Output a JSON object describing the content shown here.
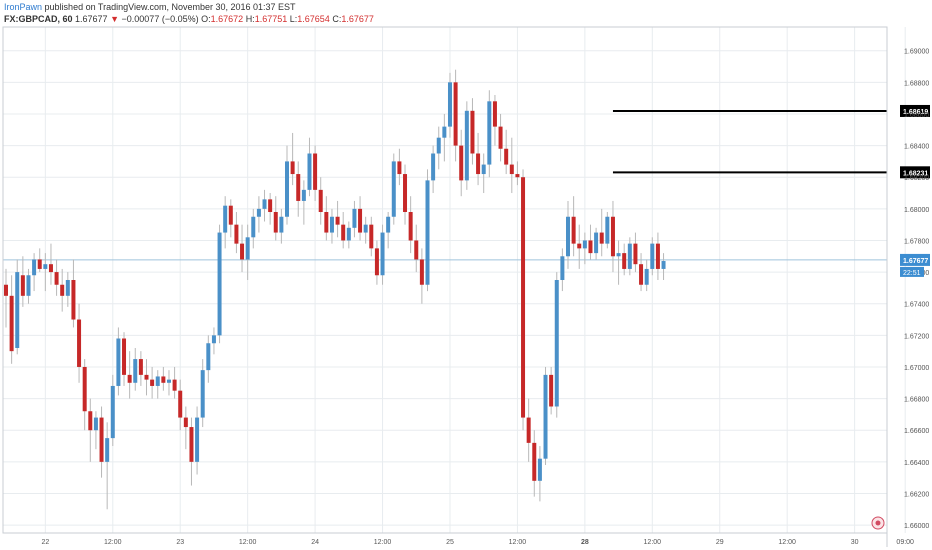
{
  "header": {
    "author": "IronPawn",
    "published_text": "published on TradingView.com, November 30, 2016 01:37 EST",
    "symbol": "FX:GBPCAD, 60",
    "last": "1.67677",
    "change": "−0.00077 (−0.05%)",
    "o_label": "O:",
    "o_value": "1.67672",
    "h_label": "H:",
    "h_value": "1.67751",
    "l_label": "L:",
    "l_value": "1.67654",
    "c_label": "C:",
    "c_value": "1.67677"
  },
  "colors": {
    "up": "#4a90c8",
    "down": "#c62828",
    "wick": "#b8b8b8",
    "grid": "#e8ecef",
    "price_line": "#9fc3dc",
    "level_line": "#000000"
  },
  "chart_data": {
    "type": "candlestick",
    "symbol": "FX:GBPCAD",
    "interval": "60",
    "y_ticks": [
      "1.69000",
      "1.68800",
      "1.68600",
      "1.68400",
      "1.68200",
      "1.68000",
      "1.67800",
      "1.67600",
      "1.67400",
      "1.67200",
      "1.67000",
      "1.66800",
      "1.66600",
      "1.66400",
      "1.66200",
      "1.66000"
    ],
    "ylim": [
      1.6595,
      1.6915
    ],
    "x_ticks": [
      "22",
      "12:00",
      "23",
      "12:00",
      "24",
      "12:00",
      "25",
      "12:00",
      "28",
      "12:00",
      "29",
      "12:00",
      "30",
      "09:00"
    ],
    "x_tick_index": [
      7,
      19,
      31,
      43,
      55,
      67,
      79,
      91,
      103,
      115,
      127,
      139,
      151,
      160
    ],
    "bold_ticks": [
      "28"
    ],
    "current_price": "1.67677",
    "countdown": "22:51",
    "levels": [
      {
        "label": "1.68619",
        "value": 1.68619,
        "from_index": 108
      },
      {
        "label": "1.68231",
        "value": 1.68231,
        "from_index": 108
      }
    ],
    "candles": [
      [
        1.6752,
        1.6762,
        1.6725,
        1.6745
      ],
      [
        1.6745,
        1.6758,
        1.6702,
        1.671
      ],
      [
        1.6712,
        1.6768,
        1.6708,
        1.676
      ],
      [
        1.6758,
        1.677,
        1.6738,
        1.6745
      ],
      [
        1.6745,
        1.6762,
        1.674,
        1.6758
      ],
      [
        1.6758,
        1.6772,
        1.6748,
        1.6768
      ],
      [
        1.6768,
        1.6775,
        1.676,
        1.6762
      ],
      [
        1.6762,
        1.6772,
        1.6748,
        1.6765
      ],
      [
        1.6765,
        1.6778,
        1.6752,
        1.676
      ],
      [
        1.676,
        1.6768,
        1.6745,
        1.6752
      ],
      [
        1.6752,
        1.6762,
        1.6735,
        1.6745
      ],
      [
        1.6745,
        1.676,
        1.6738,
        1.6755
      ],
      [
        1.6755,
        1.6768,
        1.6725,
        1.673
      ],
      [
        1.673,
        1.674,
        1.669,
        1.67
      ],
      [
        1.67,
        1.6705,
        1.666,
        1.6672
      ],
      [
        1.6672,
        1.668,
        1.664,
        1.666
      ],
      [
        1.666,
        1.6672,
        1.6648,
        1.6668
      ],
      [
        1.6668,
        1.6675,
        1.663,
        1.664
      ],
      [
        1.664,
        1.6665,
        1.661,
        1.6655
      ],
      [
        1.6655,
        1.6695,
        1.665,
        1.6688
      ],
      [
        1.6688,
        1.6725,
        1.6682,
        1.6718
      ],
      [
        1.6718,
        1.6722,
        1.6688,
        1.6695
      ],
      [
        1.6695,
        1.671,
        1.668,
        1.669
      ],
      [
        1.669,
        1.6712,
        1.6685,
        1.6705
      ],
      [
        1.6705,
        1.671,
        1.6688,
        1.6695
      ],
      [
        1.6695,
        1.6705,
        1.6682,
        1.6692
      ],
      [
        1.6692,
        1.67,
        1.668,
        1.6688
      ],
      [
        1.6688,
        1.6698,
        1.668,
        1.6694
      ],
      [
        1.6694,
        1.67,
        1.6685,
        1.669
      ],
      [
        1.669,
        1.6698,
        1.6682,
        1.6692
      ],
      [
        1.6692,
        1.67,
        1.668,
        1.6685
      ],
      [
        1.6685,
        1.6692,
        1.666,
        1.6668
      ],
      [
        1.6668,
        1.6675,
        1.6648,
        1.6662
      ],
      [
        1.6662,
        1.6668,
        1.6625,
        1.664
      ],
      [
        1.664,
        1.6675,
        1.6632,
        1.6668
      ],
      [
        1.6668,
        1.6705,
        1.6662,
        1.6698
      ],
      [
        1.6698,
        1.672,
        1.669,
        1.6715
      ],
      [
        1.6715,
        1.6725,
        1.6708,
        1.672
      ],
      [
        1.672,
        1.679,
        1.6715,
        1.6785
      ],
      [
        1.6785,
        1.6808,
        1.6775,
        1.6802
      ],
      [
        1.6802,
        1.6806,
        1.6782,
        1.679
      ],
      [
        1.679,
        1.6798,
        1.6772,
        1.6778
      ],
      [
        1.6778,
        1.679,
        1.676,
        1.6768
      ],
      [
        1.6768,
        1.679,
        1.6755,
        1.6782
      ],
      [
        1.6782,
        1.68,
        1.6775,
        1.6795
      ],
      [
        1.6795,
        1.6808,
        1.6785,
        1.68
      ],
      [
        1.68,
        1.6812,
        1.6792,
        1.6806
      ],
      [
        1.6806,
        1.681,
        1.679,
        1.6798
      ],
      [
        1.6798,
        1.6808,
        1.678,
        1.6785
      ],
      [
        1.6785,
        1.68,
        1.6778,
        1.6795
      ],
      [
        1.6795,
        1.684,
        1.679,
        1.683
      ],
      [
        1.683,
        1.6848,
        1.6815,
        1.6822
      ],
      [
        1.6822,
        1.683,
        1.6795,
        1.6805
      ],
      [
        1.6805,
        1.6818,
        1.679,
        1.6812
      ],
      [
        1.6812,
        1.6845,
        1.6808,
        1.6835
      ],
      [
        1.6835,
        1.684,
        1.6805,
        1.6812
      ],
      [
        1.6812,
        1.682,
        1.679,
        1.6798
      ],
      [
        1.6798,
        1.6808,
        1.678,
        1.6785
      ],
      [
        1.6785,
        1.68,
        1.6778,
        1.6795
      ],
      [
        1.6795,
        1.6805,
        1.6782,
        1.679
      ],
      [
        1.679,
        1.6798,
        1.6775,
        1.678
      ],
      [
        1.678,
        1.6792,
        1.6775,
        1.6788
      ],
      [
        1.6788,
        1.6805,
        1.6782,
        1.68
      ],
      [
        1.68,
        1.6808,
        1.678,
        1.6785
      ],
      [
        1.6785,
        1.6795,
        1.6778,
        1.679
      ],
      [
        1.679,
        1.6795,
        1.677,
        1.6775
      ],
      [
        1.6775,
        1.678,
        1.6752,
        1.6758
      ],
      [
        1.6758,
        1.679,
        1.6752,
        1.6785
      ],
      [
        1.6785,
        1.6798,
        1.6775,
        1.6795
      ],
      [
        1.6795,
        1.6835,
        1.679,
        1.683
      ],
      [
        1.683,
        1.6838,
        1.6815,
        1.6822
      ],
      [
        1.6822,
        1.6828,
        1.679,
        1.6798
      ],
      [
        1.6798,
        1.6808,
        1.6772,
        1.678
      ],
      [
        1.678,
        1.679,
        1.676,
        1.6768
      ],
      [
        1.6768,
        1.6775,
        1.674,
        1.6752
      ],
      [
        1.6752,
        1.6825,
        1.6748,
        1.6818
      ],
      [
        1.6818,
        1.684,
        1.681,
        1.6835
      ],
      [
        1.6835,
        1.6852,
        1.6825,
        1.6845
      ],
      [
        1.6845,
        1.686,
        1.683,
        1.6852
      ],
      [
        1.6852,
        1.6886,
        1.6845,
        1.688
      ],
      [
        1.688,
        1.6888,
        1.683,
        1.684
      ],
      [
        1.684,
        1.685,
        1.6808,
        1.6818
      ],
      [
        1.6818,
        1.6868,
        1.6812,
        1.6862
      ],
      [
        1.6862,
        1.687,
        1.6828,
        1.6835
      ],
      [
        1.6835,
        1.6848,
        1.6815,
        1.6822
      ],
      [
        1.6822,
        1.6835,
        1.681,
        1.6828
      ],
      [
        1.6828,
        1.6875,
        1.682,
        1.6868
      ],
      [
        1.6868,
        1.6872,
        1.684,
        1.6852
      ],
      [
        1.6852,
        1.686,
        1.683,
        1.6838
      ],
      [
        1.6838,
        1.685,
        1.6822,
        1.6828
      ],
      [
        1.6828,
        1.6845,
        1.681,
        1.6822
      ],
      [
        1.6822,
        1.683,
        1.6815,
        1.682
      ],
      [
        1.682,
        1.6825,
        1.666,
        1.6668
      ],
      [
        1.6668,
        1.668,
        1.664,
        1.6652
      ],
      [
        1.6652,
        1.666,
        1.6618,
        1.6628
      ],
      [
        1.6628,
        1.665,
        1.6615,
        1.6642
      ],
      [
        1.6642,
        1.67,
        1.6638,
        1.6695
      ],
      [
        1.6695,
        1.67,
        1.667,
        1.6675
      ],
      [
        1.6675,
        1.676,
        1.6668,
        1.6755
      ],
      [
        1.6755,
        1.6775,
        1.6748,
        1.677
      ],
      [
        1.677,
        1.6805,
        1.6762,
        1.6795
      ],
      [
        1.6795,
        1.6808,
        1.677,
        1.6778
      ],
      [
        1.6778,
        1.679,
        1.6762,
        1.6775
      ],
      [
        1.6775,
        1.6785,
        1.6765,
        1.678
      ],
      [
        1.678,
        1.679,
        1.6768,
        1.6772
      ],
      [
        1.6772,
        1.6788,
        1.6768,
        1.6785
      ],
      [
        1.6785,
        1.68,
        1.677,
        1.6778
      ],
      [
        1.6778,
        1.6798,
        1.6775,
        1.6795
      ],
      [
        1.6795,
        1.6805,
        1.676,
        1.677
      ],
      [
        1.677,
        1.678,
        1.6752,
        1.6772
      ],
      [
        1.6772,
        1.6778,
        1.6758,
        1.6762
      ],
      [
        1.6762,
        1.6782,
        1.6758,
        1.6778
      ],
      [
        1.6778,
        1.6785,
        1.676,
        1.6765
      ],
      [
        1.6765,
        1.6772,
        1.6748,
        1.6752
      ],
      [
        1.6752,
        1.6768,
        1.6748,
        1.6762
      ],
      [
        1.6762,
        1.6782,
        1.6758,
        1.6778
      ],
      [
        1.6778,
        1.6785,
        1.6755,
        1.6762
      ],
      [
        1.6762,
        1.6772,
        1.6755,
        1.6767
      ]
    ]
  }
}
